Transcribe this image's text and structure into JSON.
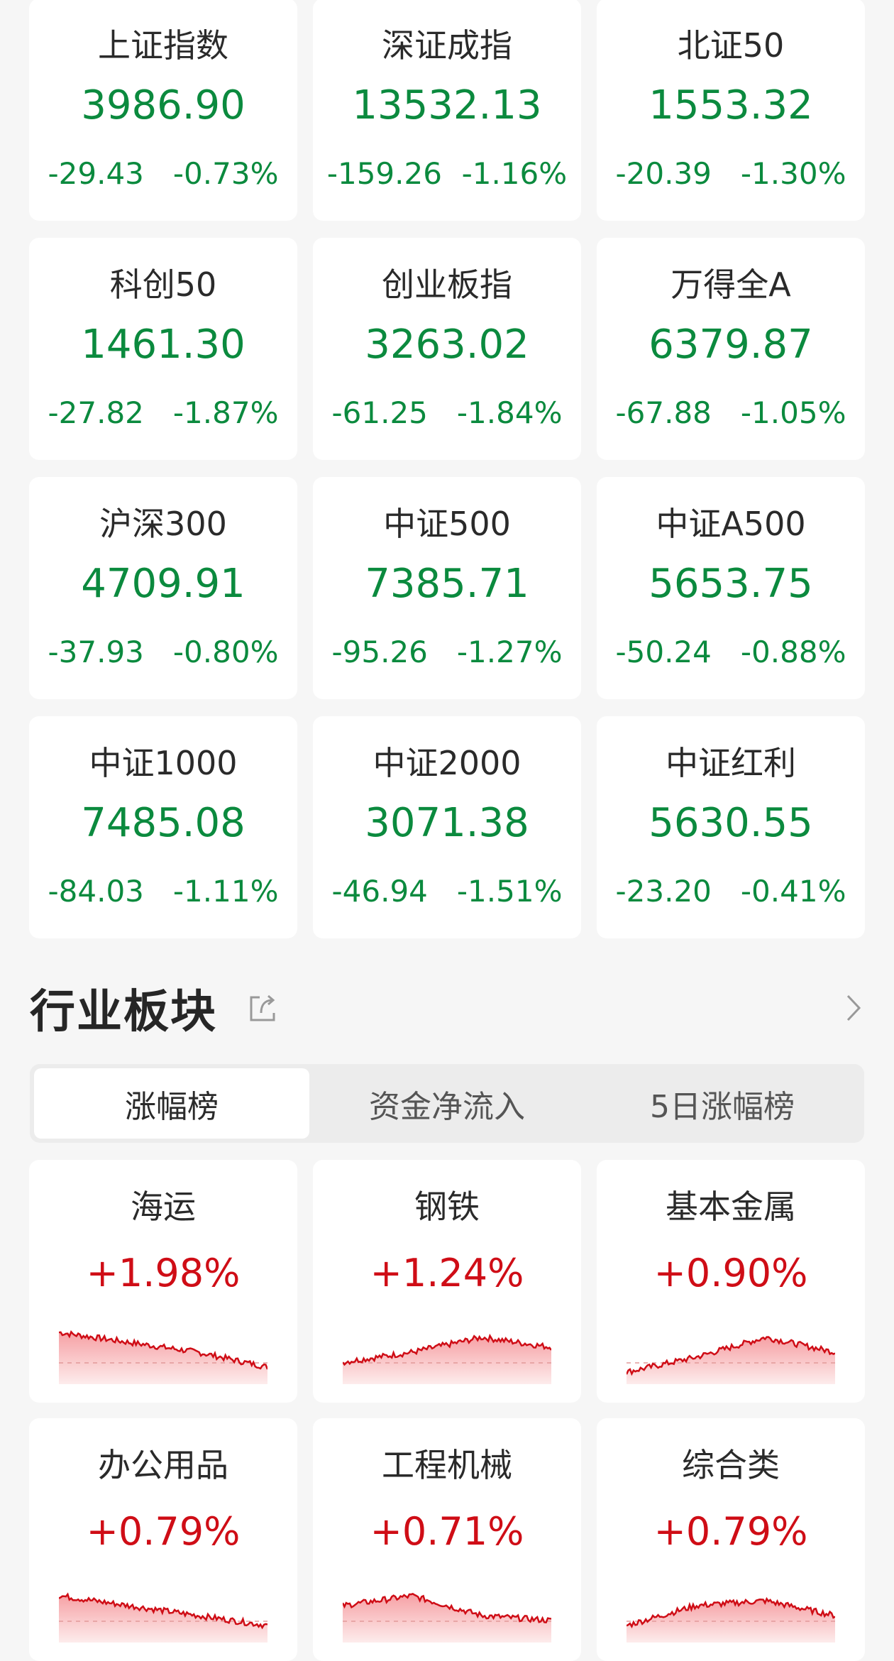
{
  "colors": {
    "down": "#0b8a3e",
    "up": "#cf0d16",
    "background": "#f6f6f6"
  },
  "indices": [
    {
      "name": "上证指数",
      "value": "3986.90",
      "change": "-29.43",
      "pct": "-0.73%"
    },
    {
      "name": "深证成指",
      "value": "13532.13",
      "change": "-159.26",
      "pct": "-1.16%"
    },
    {
      "name": "北证50",
      "value": "1553.32",
      "change": "-20.39",
      "pct": "-1.30%"
    },
    {
      "name": "科创50",
      "value": "1461.30",
      "change": "-27.82",
      "pct": "-1.87%"
    },
    {
      "name": "创业板指",
      "value": "3263.02",
      "change": "-61.25",
      "pct": "-1.84%"
    },
    {
      "name": "万得全A",
      "value": "6379.87",
      "change": "-67.88",
      "pct": "-1.05%"
    },
    {
      "name": "沪深300",
      "value": "4709.91",
      "change": "-37.93",
      "pct": "-0.80%"
    },
    {
      "name": "中证500",
      "value": "7385.71",
      "change": "-95.26",
      "pct": "-1.27%"
    },
    {
      "name": "中证A500",
      "value": "5653.75",
      "change": "-50.24",
      "pct": "-0.88%"
    },
    {
      "name": "中证1000",
      "value": "7485.08",
      "change": "-84.03",
      "pct": "-1.11%"
    },
    {
      "name": "中证2000",
      "value": "3071.38",
      "change": "-46.94",
      "pct": "-1.51%"
    },
    {
      "name": "中证红利",
      "value": "5630.55",
      "change": "-23.20",
      "pct": "-0.41%"
    }
  ],
  "sectors_section": {
    "title": "行业板块",
    "share_icon": "share-icon",
    "more_icon": "chevron-right-icon",
    "tabs": [
      {
        "label": "涨幅榜",
        "active": true
      },
      {
        "label": "资金净流入",
        "active": false
      },
      {
        "label": "5日涨幅榜",
        "active": false
      }
    ],
    "items": [
      {
        "name": "海运",
        "pct": "+1.98%",
        "trend": [
          0.9,
          0.7,
          0.5,
          0.2
        ]
      },
      {
        "name": "钢铁",
        "pct": "+1.24%",
        "trend": [
          0.3,
          0.5,
          0.8,
          0.6
        ]
      },
      {
        "name": "基本金属",
        "pct": "+0.90%",
        "trend": [
          0.1,
          0.4,
          0.8,
          0.5
        ]
      },
      {
        "name": "办公用品",
        "pct": "+0.79%",
        "trend": [
          0.8,
          0.6,
          0.4,
          0.2
        ]
      },
      {
        "name": "工程机械",
        "pct": "+0.71%",
        "trend": [
          0.6,
          0.8,
          0.4,
          0.3
        ]
      },
      {
        "name": "综合类",
        "pct": "+0.79%",
        "trend": [
          0.2,
          0.6,
          0.7,
          0.4
        ]
      }
    ]
  }
}
